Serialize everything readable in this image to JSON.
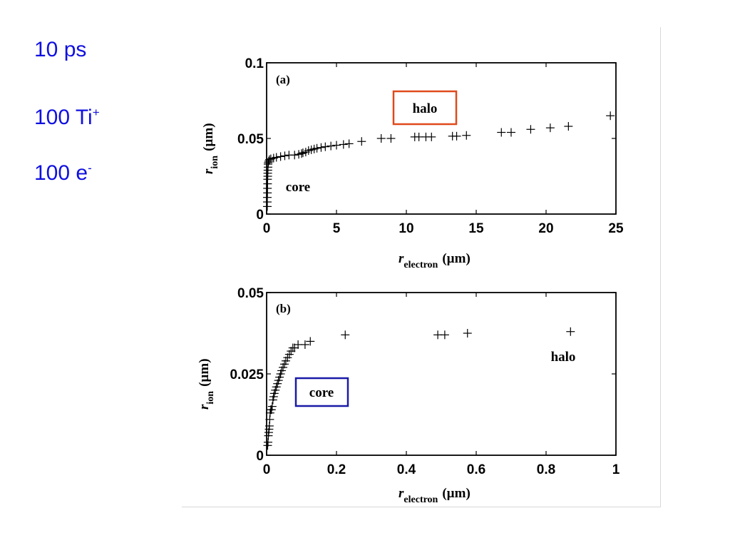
{
  "labels": {
    "duration": "10 ps",
    "ions_count": "100 Ti",
    "ions_charge": "+",
    "electrons_count": "100 e",
    "electrons_charge": "-"
  },
  "colors": {
    "label_text": "#1010e0",
    "halo_box": "#e04a1c",
    "core_box": "#1a1aa8"
  },
  "chart_data": [
    {
      "type": "scatter",
      "panel": "(a)",
      "xlabel": "r",
      "xlabel_sub": "electron",
      "xlabel_unit": "(µm)",
      "ylabel": "r",
      "ylabel_sub": "ion",
      "ylabel_unit": "(µm)",
      "xlim": [
        0,
        25
      ],
      "ylim": [
        0,
        0.1
      ],
      "xticks": [
        "0",
        "5",
        "10",
        "15",
        "20",
        "25"
      ],
      "yticks": [
        "0",
        "0.05",
        "0.1"
      ],
      "annotations": [
        {
          "text": "halo",
          "boxed": true,
          "box_color": "#e04a1c"
        },
        {
          "text": "core",
          "boxed": false
        }
      ],
      "x": [
        0.05,
        0.05,
        0.05,
        0.06,
        0.06,
        0.07,
        0.07,
        0.08,
        0.08,
        0.09,
        0.1,
        0.1,
        0.12,
        0.15,
        0.2,
        0.3,
        0.5,
        0.7,
        1.0,
        1.3,
        1.6,
        2.0,
        2.3,
        2.5,
        2.6,
        2.8,
        3.0,
        3.2,
        3.4,
        3.6,
        3.9,
        4.2,
        4.6,
        5.0,
        5.5,
        5.9,
        6.8,
        8.2,
        8.9,
        10.6,
        10.9,
        11.4,
        11.8,
        13.3,
        13.6,
        14.3,
        16.8,
        17.5,
        18.9,
        20.3,
        21.6,
        24.6
      ],
      "y": [
        0.005,
        0.008,
        0.011,
        0.014,
        0.017,
        0.02,
        0.023,
        0.025,
        0.027,
        0.029,
        0.031,
        0.033,
        0.034,
        0.035,
        0.036,
        0.0365,
        0.037,
        0.0375,
        0.038,
        0.0385,
        0.039,
        0.039,
        0.0395,
        0.04,
        0.0405,
        0.041,
        0.042,
        0.0425,
        0.043,
        0.0435,
        0.044,
        0.0445,
        0.045,
        0.0455,
        0.046,
        0.0465,
        0.048,
        0.05,
        0.05,
        0.051,
        0.051,
        0.051,
        0.051,
        0.0515,
        0.0515,
        0.052,
        0.054,
        0.054,
        0.056,
        0.057,
        0.058,
        0.065
      ]
    },
    {
      "type": "scatter",
      "panel": "(b)",
      "xlabel": "r",
      "xlabel_sub": "electron",
      "xlabel_unit": "(µm)",
      "ylabel": "r",
      "ylabel_sub": "ion",
      "ylabel_unit": "(µm)",
      "xlim": [
        0,
        1
      ],
      "ylim": [
        0,
        0.05
      ],
      "xticks": [
        "0",
        "0.2",
        "0.4",
        "0.6",
        "0.8",
        "1"
      ],
      "yticks": [
        "0",
        "0.025",
        "0.05"
      ],
      "annotations": [
        {
          "text": "halo",
          "boxed": false
        },
        {
          "text": "core",
          "boxed": true,
          "box_color": "#1a1aa8"
        }
      ],
      "x": [
        0.003,
        0.004,
        0.005,
        0.006,
        0.007,
        0.008,
        0.009,
        0.01,
        0.012,
        0.014,
        0.016,
        0.018,
        0.02,
        0.022,
        0.025,
        0.028,
        0.031,
        0.034,
        0.037,
        0.04,
        0.043,
        0.047,
        0.051,
        0.055,
        0.06,
        0.065,
        0.07,
        0.075,
        0.08,
        0.09,
        0.11,
        0.125,
        0.225,
        0.49,
        0.51,
        0.575,
        0.87
      ],
      "y": [
        0.003,
        0.004,
        0.006,
        0.007,
        0.008,
        0.009,
        0.011,
        0.013,
        0.014,
        0.014,
        0.015,
        0.017,
        0.018,
        0.019,
        0.02,
        0.021,
        0.022,
        0.023,
        0.024,
        0.025,
        0.026,
        0.027,
        0.028,
        0.029,
        0.03,
        0.031,
        0.032,
        0.033,
        0.033,
        0.034,
        0.034,
        0.035,
        0.037,
        0.037,
        0.037,
        0.0375,
        0.038
      ]
    }
  ]
}
